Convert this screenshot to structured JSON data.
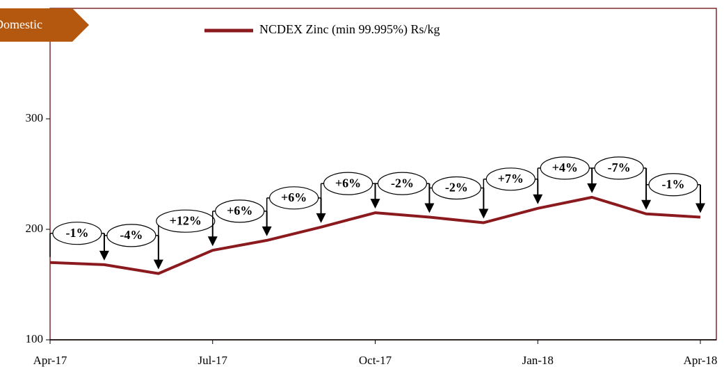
{
  "chart_data": {
    "type": "line",
    "tag": "Domestic",
    "categories": [
      "Apr-17",
      null,
      null,
      "Jul-17",
      null,
      null,
      "Oct-17",
      null,
      null,
      "Jan-18",
      null,
      null,
      "Apr-18"
    ],
    "series": [
      {
        "name": "NCDEX Zinc (min 99.995%) Rs/kg",
        "color": "#8b1a1f",
        "values": [
          170,
          168,
          160,
          181,
          190,
          202,
          215,
          211,
          206,
          219,
          229,
          214,
          211
        ]
      }
    ],
    "annotations": [
      "-1%",
      "-4%",
      "+12%",
      "+6%",
      "+6%",
      "+6%",
      "-2%",
      "-2%",
      "+7%",
      "+4%",
      "-7%",
      "-1%"
    ],
    "ylim": [
      100,
      400
    ],
    "yticks": [
      100,
      200,
      300
    ]
  }
}
